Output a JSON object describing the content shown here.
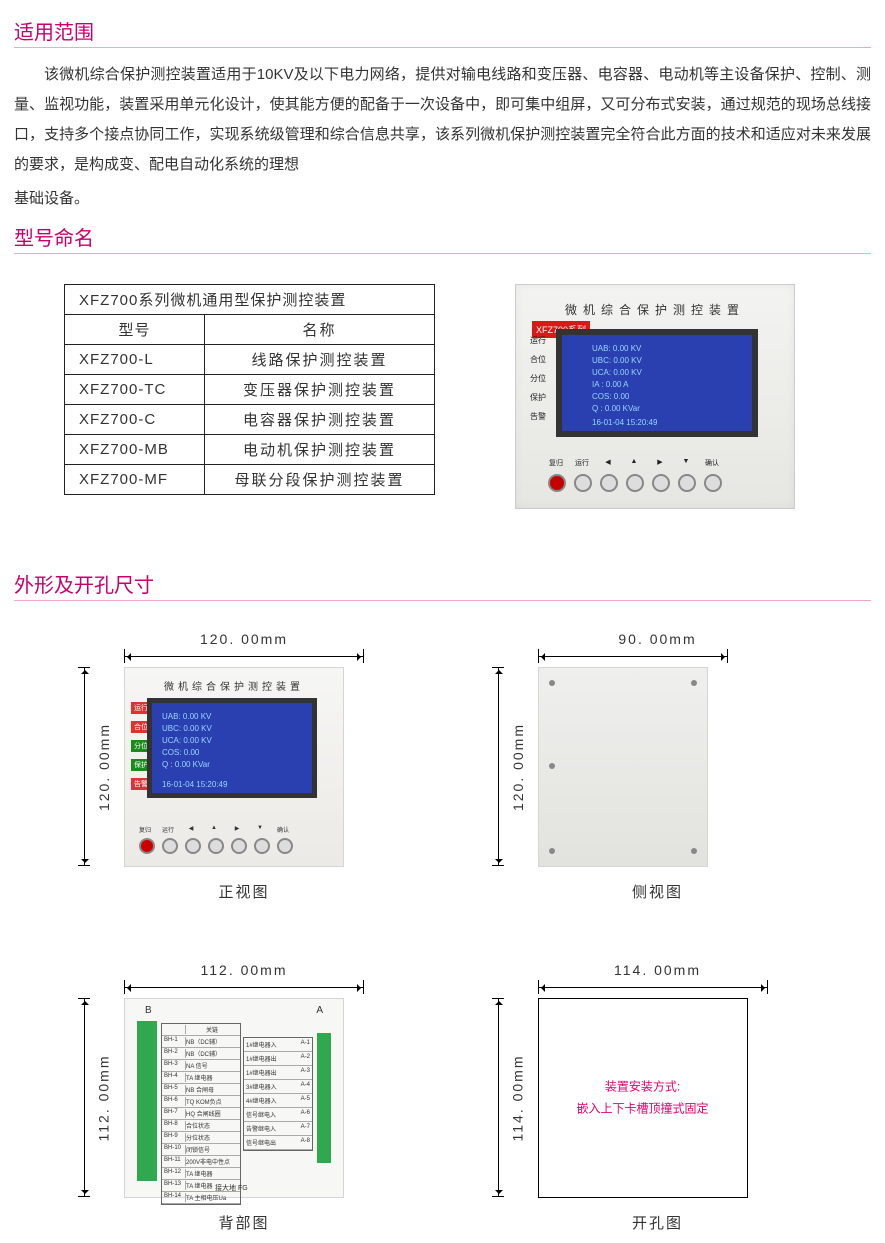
{
  "sections": {
    "scope_title": "适用范围",
    "scope_text": "该微机综合保护测控装置适用于10KV及以下电力网络，提供对输电线路和变压器、电容器、电动机等主设备保护、控制、测量、监视功能，装置采用单元化设计，使其能方便的配备于一次设备中，即可集中组屏，又可分布式安装，通过规范的现场总线接口，支持多个接点协同工作，实现系统级管理和综合信息共享，该系列微机保护测控装置完全符合此方面的技术和适应对未来发展的要求，是构成变、配电自动化系统的理想",
    "scope_text2": "基础设备。",
    "model_title": "型号命名",
    "dim_title": "外形及开孔尺寸"
  },
  "model_table": {
    "caption": "XFZ700系列微机通用型保护测控装置",
    "headers": {
      "model": "型号",
      "name": "名称"
    },
    "rows": [
      {
        "model": "XFZ700-L",
        "name": "线路保护测控装置"
      },
      {
        "model": "XFZ700-TC",
        "name": "变压器保护测控装置"
      },
      {
        "model": "XFZ700-C",
        "name": "电容器保护测控装置"
      },
      {
        "model": "XFZ700-MB",
        "name": "电动机保护测控装置"
      },
      {
        "model": "XFZ700-MF",
        "name": "母联分段保护测控装置"
      }
    ]
  },
  "device": {
    "series_badge": "XFZ700系列",
    "panel_title": "微机综合保护测控装置",
    "leds": [
      "运行",
      "合位",
      "分位",
      "保护",
      "告警"
    ],
    "screen_lines": [
      "UAB:  0.00  KV",
      "UBC:  0.00  KV",
      "UCA:  0.00  KV",
      "IA :  0.00  A",
      "COS:  0.00",
      "Q  :  0.00  KVar"
    ],
    "screen_date": "16-01-04  15:20:49",
    "btn_labels": [
      "复归",
      "运行",
      "◀",
      "▲",
      "▶",
      "▼",
      "确认"
    ],
    "buttons_count": 7,
    "button_colors": [
      "#c40000",
      "#dddddd",
      "#dddddd",
      "#dddddd",
      "#dddddd",
      "#dddddd",
      "#dddddd"
    ],
    "screen_bg": "#2a3fb0",
    "screen_text": "#9ad6ff"
  },
  "dimensions": {
    "front": {
      "w": "120. 00mm",
      "h": "120. 00mm",
      "caption": "正视图"
    },
    "side": {
      "w": "90. 00mm",
      "h": "120. 00mm",
      "caption": "侧视图"
    },
    "back": {
      "w": "112. 00mm",
      "h": "112. 00mm",
      "caption": "背部图"
    },
    "hole": {
      "w": "114. 00mm",
      "h": "114. 00mm",
      "caption": "开孔图",
      "note_line1": "装置安装方式:",
      "note_line2": "嵌入上下卡槽顶撞式固定"
    }
  },
  "back_table_left": {
    "header_l": "",
    "header_r": "关链",
    "rows": [
      [
        "BH-1",
        "NB（DC辅）"
      ],
      [
        "BH-2",
        "NB（DC辅）"
      ],
      [
        "BH-3",
        "NA 信号"
      ],
      [
        "BH-4",
        "TA 继电器"
      ],
      [
        "BH-5",
        "NB 合闸母"
      ],
      [
        "BH-6",
        "TQ KOM负点"
      ],
      [
        "BH-7",
        "HQ 合闸线圈"
      ],
      [
        "BH-8",
        "合位状态"
      ],
      [
        "BH-9",
        "分位状态"
      ],
      [
        "BH-10",
        "闭锁信号"
      ],
      [
        "BH-11",
        "200V非电中性点"
      ],
      [
        "BH-12",
        "TA 继电器"
      ],
      [
        "BH-13",
        "TA 继电器"
      ],
      [
        "BH-14",
        "TA 主相电压Ua"
      ]
    ]
  },
  "back_table_right": {
    "rows": [
      [
        "1#继电器入",
        "A-1"
      ],
      [
        "1#继电器出",
        "A-2"
      ],
      [
        "1#继电器出",
        "A-3"
      ],
      [
        "3#继电器入",
        "A-4"
      ],
      [
        "4#继电器入",
        "A-5"
      ],
      [
        "信号继电入",
        "A-6"
      ],
      [
        "告警继电入",
        "A-7"
      ],
      [
        "信号继电出",
        "A-8"
      ]
    ]
  },
  "back_labels": {
    "A": "A",
    "B": "B",
    "gnd": "接大地 FG"
  },
  "colors": {
    "accent": "#c8006e",
    "rule": "#f3a7c9",
    "note": "#e5006e"
  }
}
